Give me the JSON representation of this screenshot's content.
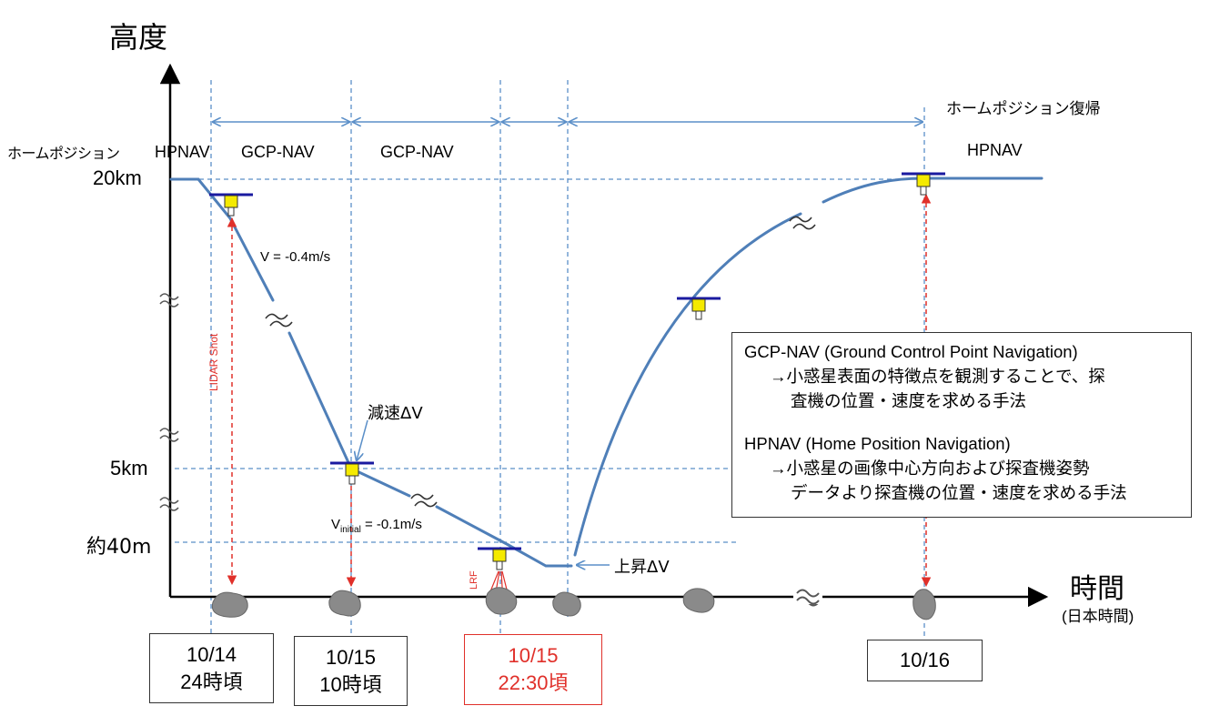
{
  "axes": {
    "y_label": "高度",
    "x_label": "時間",
    "x_sublabel": "(日本時間)",
    "y_ticks": [
      {
        "label": "20km"
      },
      {
        "label": "5km"
      },
      {
        "label": "約40m"
      }
    ],
    "home_position_label": "ホームポジション"
  },
  "phases": [
    {
      "label": "HPNAV"
    },
    {
      "label": "GCP-NAV"
    },
    {
      "label": "GCP-NAV"
    },
    {
      "label": "HPNAV"
    }
  ],
  "return_label": "ホームポジション復帰",
  "annotations": {
    "velocity_descent": "V = -0.4m/s",
    "decel": "減速ΔV",
    "v_initial_prefix": "V",
    "v_initial_sub": "initial",
    "v_initial_value": " = -0.1m/s",
    "ascent": "上昇ΔV",
    "lidar": "LIDAR Shot",
    "lrf": "LRF"
  },
  "time_boxes": [
    {
      "line1": "10/14",
      "line2": "24時頃"
    },
    {
      "line1": "10/15",
      "line2": "10時頃"
    },
    {
      "line1": "10/15",
      "line2": "22:30頃"
    },
    {
      "line1": "10/16",
      "line2": ""
    }
  ],
  "legend": {
    "gcp_title": "GCP-NAV (Ground Control Point Navigation)",
    "gcp_line1": "→小惑星表面の特徴点を観測することで、探",
    "gcp_line2": "査機の位置・速度を求める手法",
    "hp_title": "HPNAV (Home Position Navigation)",
    "hp_line1": "→小惑星の画像中心方向および探査機姿勢",
    "hp_line2": "データより探査機の位置・速度を求める手法"
  },
  "colors": {
    "trajectory": "#4f7fb8",
    "guide": "#5b8fc8",
    "highlight": "#e0302a",
    "spacecraft": "#f5ea00",
    "spacecraft_bar": "#1a1aa0",
    "asteroid": "#8a8a8a"
  }
}
